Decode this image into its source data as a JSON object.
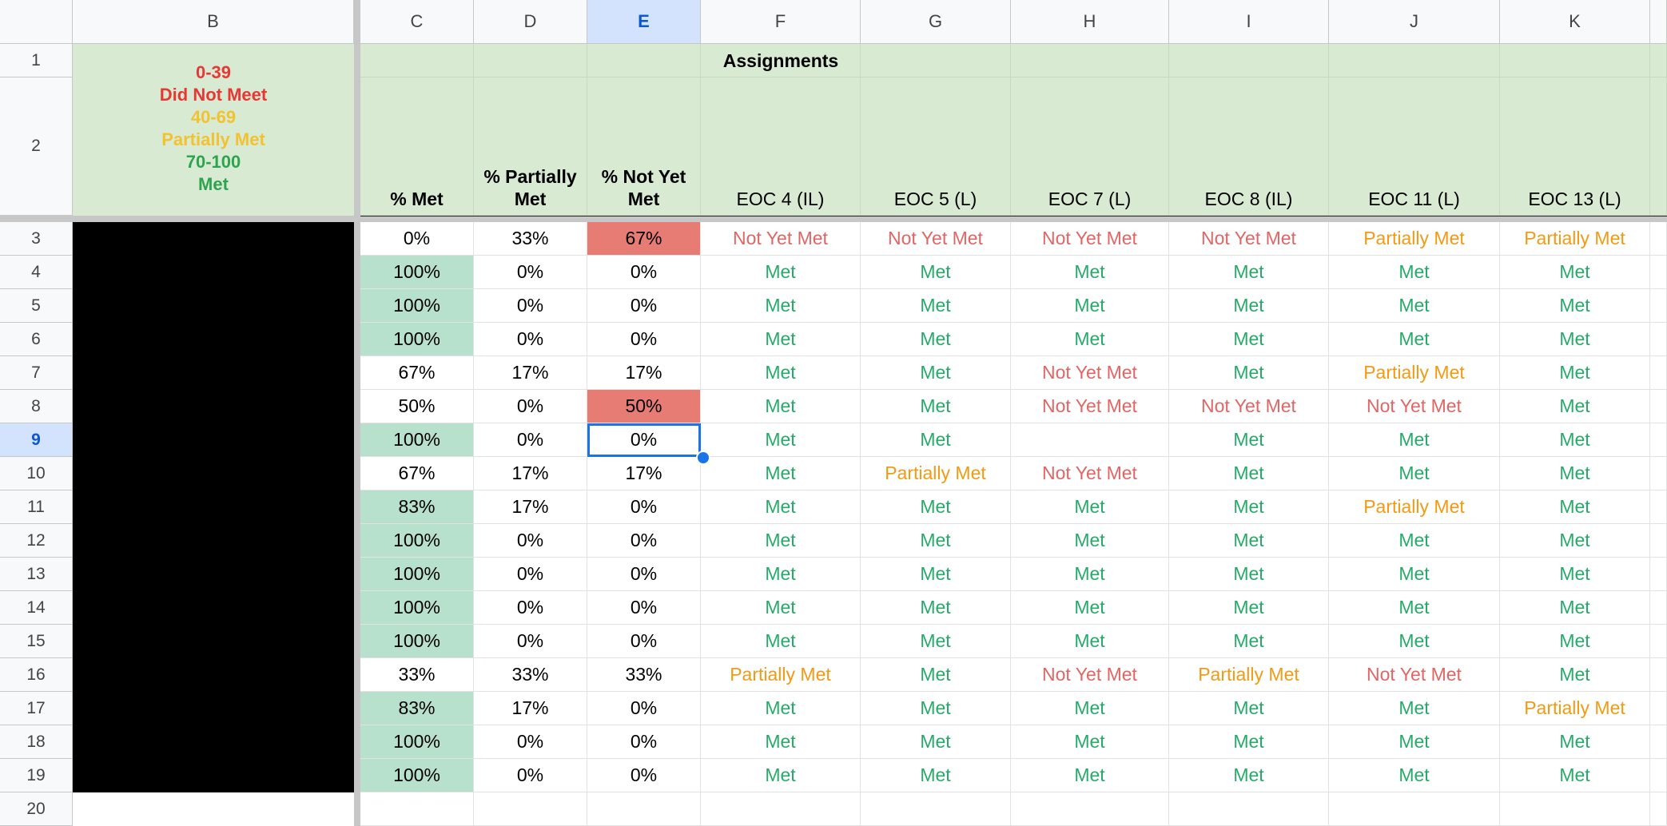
{
  "columns": [
    "B",
    "C",
    "D",
    "E",
    "F",
    "G",
    "H",
    "I",
    "J",
    "K"
  ],
  "active_column": "E",
  "rows": [
    1,
    2,
    3,
    4,
    5,
    6,
    7,
    8,
    9,
    10,
    11,
    12,
    13,
    14,
    15,
    16,
    17,
    18,
    19,
    20
  ],
  "active_row": 9,
  "legend": [
    "0-39",
    "Did Not Meet",
    "40-69",
    "Partially Met",
    "70-100",
    "Met"
  ],
  "assignments_title": "Assignments",
  "headers": [
    "% Met",
    "% Partially Met",
    "% Not Yet Met",
    "EOC 4 (IL)",
    "EOC 5 (L)",
    "EOC 7 (L)",
    "EOC 8 (IL)",
    "EOC 11 (L)",
    "EOC 13 (L)"
  ],
  "colors": {
    "met": "#27a96a",
    "partially_met": "#f29a14",
    "not_yet_met": "#e06666",
    "header_green": "#d9ead3",
    "met_fill": "#b7e1cd",
    "alert_fill": "#e67c73",
    "selection": "#1a73e8"
  },
  "selected_cell": "E9",
  "data_rows": [
    [
      "0%",
      "33%",
      "67%",
      "Not Yet Met",
      "Not Yet Met",
      "Not Yet Met",
      "Not Yet Met",
      "Partially Met",
      "Partially Met"
    ],
    [
      "100%",
      "0%",
      "0%",
      "Met",
      "Met",
      "Met",
      "Met",
      "Met",
      "Met"
    ],
    [
      "100%",
      "0%",
      "0%",
      "Met",
      "Met",
      "Met",
      "Met",
      "Met",
      "Met"
    ],
    [
      "100%",
      "0%",
      "0%",
      "Met",
      "Met",
      "Met",
      "Met",
      "Met",
      "Met"
    ],
    [
      "67%",
      "17%",
      "17%",
      "Met",
      "Met",
      "Not Yet Met",
      "Met",
      "Partially Met",
      "Met"
    ],
    [
      "50%",
      "0%",
      "50%",
      "Met",
      "Met",
      "Not Yet Met",
      "Not Yet Met",
      "Not Yet Met",
      "Met"
    ],
    [
      "100%",
      "0%",
      "0%",
      "Met",
      "Met",
      "",
      "Met",
      "Met",
      "Met"
    ],
    [
      "67%",
      "17%",
      "17%",
      "Met",
      "Partially Met",
      "Not Yet Met",
      "Met",
      "Met",
      "Met"
    ],
    [
      "83%",
      "17%",
      "0%",
      "Met",
      "Met",
      "Met",
      "Met",
      "Partially Met",
      "Met"
    ],
    [
      "100%",
      "0%",
      "0%",
      "Met",
      "Met",
      "Met",
      "Met",
      "Met",
      "Met"
    ],
    [
      "100%",
      "0%",
      "0%",
      "Met",
      "Met",
      "Met",
      "Met",
      "Met",
      "Met"
    ],
    [
      "100%",
      "0%",
      "0%",
      "Met",
      "Met",
      "Met",
      "Met",
      "Met",
      "Met"
    ],
    [
      "100%",
      "0%",
      "0%",
      "Met",
      "Met",
      "Met",
      "Met",
      "Met",
      "Met"
    ],
    [
      "33%",
      "33%",
      "33%",
      "Partially Met",
      "Met",
      "Not Yet Met",
      "Partially Met",
      "Not Yet Met",
      "Met"
    ],
    [
      "83%",
      "17%",
      "0%",
      "Met",
      "Met",
      "Met",
      "Met",
      "Met",
      "Partially Met"
    ],
    [
      "100%",
      "0%",
      "0%",
      "Met",
      "Met",
      "Met",
      "Met",
      "Met",
      "Met"
    ],
    [
      "100%",
      "0%",
      "0%",
      "Met",
      "Met",
      "Met",
      "Met",
      "Met",
      "Met"
    ],
    [
      "",
      "",
      "",
      "",
      "",
      "",
      "",
      "",
      ""
    ]
  ]
}
